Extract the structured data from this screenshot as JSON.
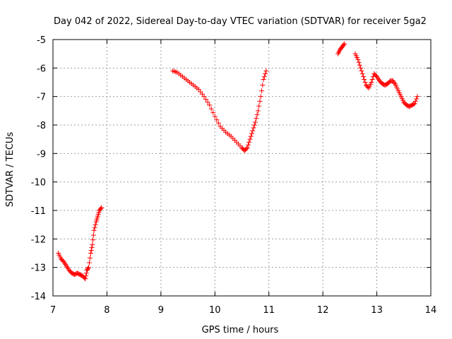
{
  "chart_data": {
    "type": "scatter",
    "title": "Day 042 of 2022, Sidereal Day-to-day VTEC variation (SDTVAR) for receiver 5ga2",
    "xlabel": "GPS time / hours",
    "ylabel": "SDTVAR / TECUs",
    "xlim": [
      7,
      14
    ],
    "ylim": [
      -14,
      -5
    ],
    "xticks": [
      "7",
      "8",
      "9",
      "10",
      "11",
      "12",
      "13",
      "14"
    ],
    "yticks": [
      "-5",
      "-6",
      "-7",
      "-8",
      "-9",
      "-10",
      "-11",
      "-12",
      "-13",
      "-14"
    ],
    "grid": true,
    "marker": "+",
    "color": "#ff0000",
    "segments": [
      {
        "x": [
          7.1,
          7.15,
          7.2,
          7.25,
          7.3,
          7.35,
          7.4,
          7.45,
          7.5,
          7.55,
          7.6,
          7.63,
          7.66,
          7.7,
          7.73,
          7.76,
          7.8,
          7.83,
          7.86,
          7.9
        ],
        "y": [
          -12.5,
          -12.7,
          -12.8,
          -12.95,
          -13.1,
          -13.2,
          -13.25,
          -13.2,
          -13.25,
          -13.3,
          -13.4,
          -13.1,
          -13.0,
          -12.5,
          -12.2,
          -11.7,
          -11.4,
          -11.2,
          -11.0,
          -10.9
        ]
      },
      {
        "x": [
          9.22,
          9.3,
          9.4,
          9.5,
          9.6,
          9.7,
          9.8,
          9.9,
          10.0,
          10.1,
          10.2,
          10.3,
          10.4,
          10.5,
          10.55,
          10.6,
          10.65,
          10.7,
          10.75,
          10.8,
          10.85,
          10.9,
          10.95
        ],
        "y": [
          -6.1,
          -6.15,
          -6.3,
          -6.45,
          -6.6,
          -6.75,
          -7.0,
          -7.3,
          -7.7,
          -8.05,
          -8.25,
          -8.4,
          -8.6,
          -8.8,
          -8.9,
          -8.8,
          -8.5,
          -8.2,
          -7.9,
          -7.5,
          -7.0,
          -6.4,
          -6.1
        ]
      },
      {
        "x": [
          12.28,
          12.32,
          12.36,
          12.4
        ],
        "y": [
          -5.5,
          -5.35,
          -5.25,
          -5.15
        ]
      },
      {
        "x": [
          12.6,
          12.65,
          12.7,
          12.75,
          12.8,
          12.85,
          12.9,
          12.95,
          13.0,
          13.05,
          13.1,
          13.15,
          13.2,
          13.25,
          13.3,
          13.35,
          13.4,
          13.45,
          13.5,
          13.55,
          13.6,
          13.65,
          13.7,
          13.75
        ],
        "y": [
          -5.5,
          -5.7,
          -6.0,
          -6.3,
          -6.6,
          -6.7,
          -6.5,
          -6.2,
          -6.3,
          -6.45,
          -6.55,
          -6.6,
          -6.55,
          -6.45,
          -6.45,
          -6.6,
          -6.8,
          -7.0,
          -7.2,
          -7.3,
          -7.35,
          -7.3,
          -7.25,
          -7.0
        ]
      }
    ]
  }
}
